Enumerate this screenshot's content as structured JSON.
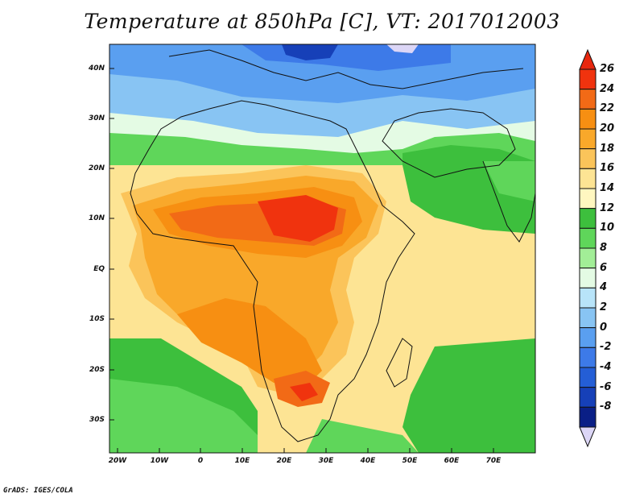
{
  "title": "Temperature at 850hPa [C], VT: 2017012003",
  "credit": "GrADS: IGES/COLA",
  "lat_labels": [
    "40N",
    "30N",
    "20N",
    "10N",
    "EQ",
    "10S",
    "20S",
    "30S"
  ],
  "lon_labels": [
    "20W",
    "10W",
    "0",
    "10E",
    "20E",
    "30E",
    "40E",
    "50E",
    "60E",
    "70E"
  ],
  "colorbar": {
    "labels": [
      "26",
      "24",
      "22",
      "20",
      "18",
      "16",
      "14",
      "12",
      "10",
      "8",
      "6",
      "4",
      "2",
      "0",
      "-2",
      "-4",
      "-6",
      "-8"
    ],
    "colors": [
      "#f0330e",
      "#f26a16",
      "#f78f12",
      "#f9a82a",
      "#fbc45a",
      "#fde494",
      "#fff7c0",
      "#3dbf3d",
      "#5fd65a",
      "#a2ee97",
      "#e4fbe4",
      "#b8e4f9",
      "#88c4f3",
      "#5a9ff0",
      "#3d7ae8",
      "#245ed6",
      "#1640b8",
      "#0a1f86"
    ],
    "top_arrow_color": "#e8270e",
    "bottom_arrow_color": "#dcd6f6"
  }
}
